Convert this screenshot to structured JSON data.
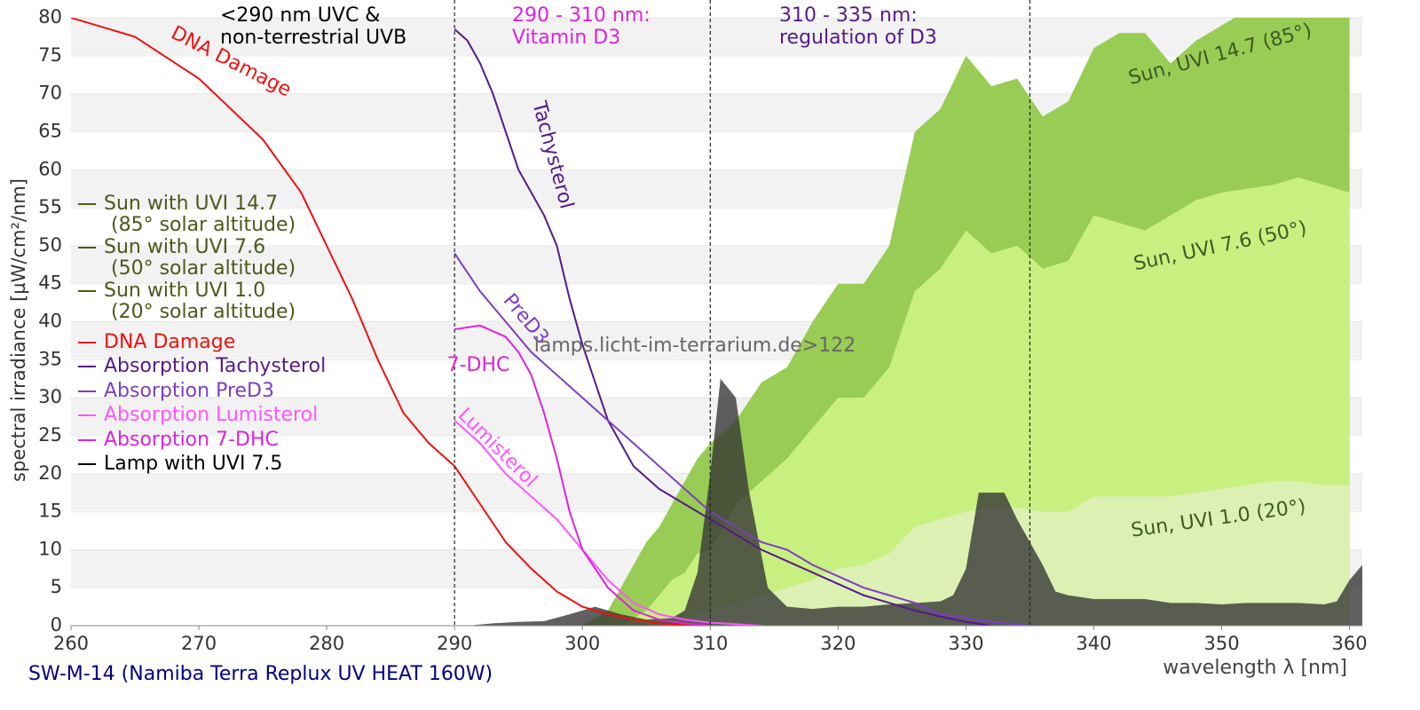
{
  "chart_data": {
    "type": "line",
    "title": "SW-M-14 (Namiba Terra Replux UV HEAT 160W)",
    "x_label": "wavelength λ [nm]",
    "y_label": "spectral irradiance [µW/cm²/nm]",
    "xlim": [
      260,
      361
    ],
    "ylim": [
      0,
      80
    ],
    "xticks": [
      260,
      270,
      280,
      290,
      300,
      310,
      320,
      330,
      340,
      350,
      360
    ],
    "yticks": [
      0,
      5,
      10,
      15,
      20,
      25,
      30,
      35,
      40,
      45,
      50,
      55,
      60,
      65,
      70,
      75,
      80
    ],
    "grid_bands": true,
    "vlines": [
      290,
      310,
      335
    ],
    "legend": "left",
    "series": [
      {
        "name": "Sun with UVI 14.7",
        "name_note": "(85° solar altitude)",
        "kind": "area",
        "color": "#99cc55",
        "x": [
          300,
          302,
          303,
          304,
          305,
          306,
          307,
          308,
          309,
          310,
          312,
          314,
          316,
          318,
          320,
          322,
          324,
          326,
          328,
          330,
          332,
          334,
          336,
          338,
          340,
          342,
          344,
          346,
          348,
          350,
          352,
          354,
          356,
          358,
          360
        ],
        "values": [
          0,
          2,
          5,
          8,
          11,
          13,
          16,
          19,
          22,
          24,
          27,
          32,
          34,
          40,
          45,
          45,
          50,
          65,
          68,
          75,
          71,
          72,
          67,
          69,
          76,
          78,
          78,
          74,
          77,
          79,
          81,
          82,
          82,
          81,
          80
        ]
      },
      {
        "name": "Sun with UVI 7.6",
        "name_note": "(50° solar altitude)",
        "kind": "area",
        "color": "#c8f080",
        "x": [
          303,
          305,
          306,
          307,
          308,
          309,
          310,
          312,
          314,
          316,
          318,
          320,
          322,
          324,
          326,
          328,
          330,
          332,
          334,
          336,
          338,
          340,
          342,
          344,
          346,
          348,
          350,
          352,
          354,
          356,
          358,
          360
        ],
        "values": [
          0,
          2,
          4,
          6,
          7,
          9.5,
          10,
          16,
          19,
          22,
          26,
          30,
          30,
          34,
          44,
          47,
          52,
          49,
          50,
          47,
          48,
          54,
          53,
          52,
          54,
          56,
          57,
          57.5,
          58,
          59,
          58,
          57
        ]
      },
      {
        "name": "Sun with UVI 1.0",
        "name_note": "(20° solar altitude)",
        "kind": "area",
        "color": "#dcf0b4",
        "x": [
          306,
          308,
          310,
          312,
          314,
          316,
          318,
          320,
          322,
          324,
          326,
          328,
          330,
          332,
          334,
          336,
          338,
          340,
          342,
          344,
          346,
          348,
          350,
          352,
          354,
          356,
          358,
          360
        ],
        "values": [
          0,
          1,
          2,
          3,
          4,
          5,
          6,
          7.5,
          8,
          9.5,
          13,
          14,
          15,
          15.5,
          15.5,
          15,
          15,
          17,
          17,
          17,
          17,
          17.5,
          18,
          18.5,
          19,
          19,
          18.5,
          18.5
        ]
      },
      {
        "name": "DNA Damage",
        "kind": "line",
        "color": "#ee1111",
        "x": [
          260,
          265,
          270,
          275,
          278,
          280,
          282,
          284,
          286,
          288,
          290,
          292,
          294,
          296,
          298,
          300,
          302,
          304,
          306,
          308,
          310
        ],
        "values": [
          80,
          77.5,
          72,
          64,
          57,
          50,
          43,
          35,
          28,
          24,
          21,
          16,
          11,
          7.5,
          4.5,
          2.5,
          1.5,
          0.8,
          0.3,
          0.1,
          0
        ]
      },
      {
        "name": "Absorption Tachysterol",
        "kind": "line",
        "color": "#551a8b",
        "x": [
          290,
          291,
          292,
          293,
          294,
          295,
          296,
          297,
          298,
          299,
          300,
          302,
          304,
          306,
          308,
          310,
          312,
          314,
          316,
          318,
          320,
          322,
          324,
          326,
          328,
          330,
          332
        ],
        "values": [
          78.5,
          77,
          74,
          70,
          65,
          60,
          57,
          54,
          50,
          43,
          37,
          27,
          21,
          18,
          16,
          14,
          12,
          10,
          8.5,
          7,
          5.5,
          4,
          3,
          2,
          1.2,
          0.5,
          0
        ]
      },
      {
        "name": "Absorption PreD3",
        "kind": "line",
        "color": "#7b3fbf",
        "x": [
          290,
          292,
          294,
          296,
          298,
          300,
          302,
          304,
          306,
          308,
          310,
          312,
          314,
          316,
          318,
          320,
          322,
          324,
          326,
          328,
          330,
          332,
          335
        ],
        "values": [
          49,
          44,
          40,
          36,
          33,
          30,
          27,
          24,
          21,
          18,
          15,
          13,
          11,
          10,
          8,
          6.5,
          5,
          4,
          3,
          1.5,
          1,
          0.5,
          0
        ]
      },
      {
        "name": "Absorption Lumisterol",
        "kind": "line",
        "color": "#ff55ff",
        "x": [
          290,
          292,
          294,
          296,
          298,
          300,
          302,
          304,
          306,
          308,
          310,
          314
        ],
        "values": [
          27,
          24,
          20,
          17,
          14,
          10,
          6,
          3,
          1.5,
          0.8,
          0.4,
          0
        ]
      },
      {
        "name": "Absorption 7-DHC",
        "kind": "line",
        "color": "#dd22dd",
        "x": [
          290,
          292,
          294,
          295,
          296,
          297,
          298,
          299,
          300,
          302,
          304,
          306,
          308,
          310
        ],
        "values": [
          39,
          39.5,
          38,
          36,
          33,
          28,
          22,
          15,
          10,
          5,
          2,
          0.8,
          0.3,
          0
        ]
      },
      {
        "name": "Lamp with UVI 7.5",
        "kind": "area",
        "color": "#333333",
        "x": [
          291,
          293,
          295,
          297,
          299,
          301,
          303,
          305,
          307,
          308,
          309,
          310,
          310.8,
          312,
          313,
          314.5,
          316,
          318,
          320,
          322,
          324,
          326,
          328,
          329,
          330,
          331,
          333,
          334,
          336,
          337,
          338,
          340,
          342,
          344,
          346,
          348,
          350,
          352,
          354,
          356,
          358,
          359,
          360,
          361
        ],
        "values": [
          0,
          0.3,
          0.5,
          0.6,
          1.5,
          2.5,
          1.5,
          0.8,
          1,
          2,
          7,
          20,
          32.5,
          30,
          18,
          5,
          2.5,
          2.2,
          2.5,
          2.5,
          2.8,
          3,
          3.2,
          4,
          7.5,
          17.5,
          17.5,
          14,
          8,
          4.5,
          4,
          3.5,
          3.5,
          3.5,
          3,
          3,
          2.8,
          3,
          3,
          3,
          2.8,
          3.2,
          6,
          8
        ]
      }
    ],
    "annotations": [
      "<290 nm UVC &",
      "non-terrestrial UVB",
      "290 - 310 nm:",
      "Vitamin D3",
      "310 - 335 nm:",
      "regulation of D3",
      "DNA Damage",
      "Tachysterol",
      "PreD3",
      "7-DHC",
      "Lumisterol",
      "Sun, UVI 14.7 (85°)",
      "Sun, UVI 7.6 (50°)",
      "Sun, UVI 1.0 (20°)",
      "lamps.licht-im-terrarium.de>122"
    ]
  }
}
